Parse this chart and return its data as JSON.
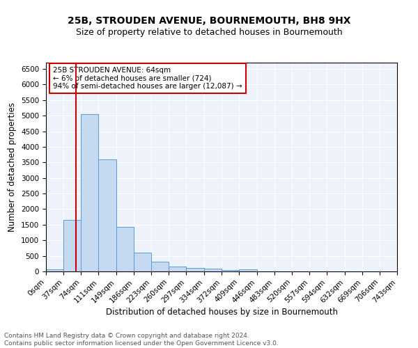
{
  "title": "25B, STROUDEN AVENUE, BOURNEMOUTH, BH8 9HX",
  "subtitle": "Size of property relative to detached houses in Bournemouth",
  "xlabel": "Distribution of detached houses by size in Bournemouth",
  "ylabel": "Number of detached properties",
  "bar_color": "#c5d9f0",
  "bar_edge_color": "#5b9bd5",
  "annotation_box_color": "#cc0000",
  "vline_color": "#cc0000",
  "vline_x": 64,
  "annotation_text": "25B STROUDEN AVENUE: 64sqm\n← 6% of detached houses are smaller (724)\n94% of semi-detached houses are larger (12,087) →",
  "footer": "Contains HM Land Registry data © Crown copyright and database right 2024.\nContains public sector information licensed under the Open Government Licence v3.0.",
  "bin_edges": [
    0,
    37,
    74,
    111,
    149,
    186,
    223,
    260,
    297,
    334,
    372,
    409,
    446,
    483,
    520,
    557,
    594,
    632,
    669,
    706,
    743
  ],
  "bar_heights": [
    70,
    1650,
    5050,
    3600,
    1420,
    600,
    310,
    165,
    120,
    95,
    50,
    60,
    5,
    5,
    5,
    5,
    5,
    5,
    5,
    5
  ],
  "ylim": [
    0,
    6700
  ],
  "yticks": [
    0,
    500,
    1000,
    1500,
    2000,
    2500,
    3000,
    3500,
    4000,
    4500,
    5000,
    5500,
    6000,
    6500
  ],
  "background_color": "#edf2fb",
  "grid_color": "#ffffff",
  "title_fontsize": 10,
  "subtitle_fontsize": 9,
  "xlabel_fontsize": 8.5,
  "ylabel_fontsize": 8.5,
  "tick_fontsize": 7.5,
  "footer_fontsize": 6.5,
  "annotation_fontsize": 7.5
}
